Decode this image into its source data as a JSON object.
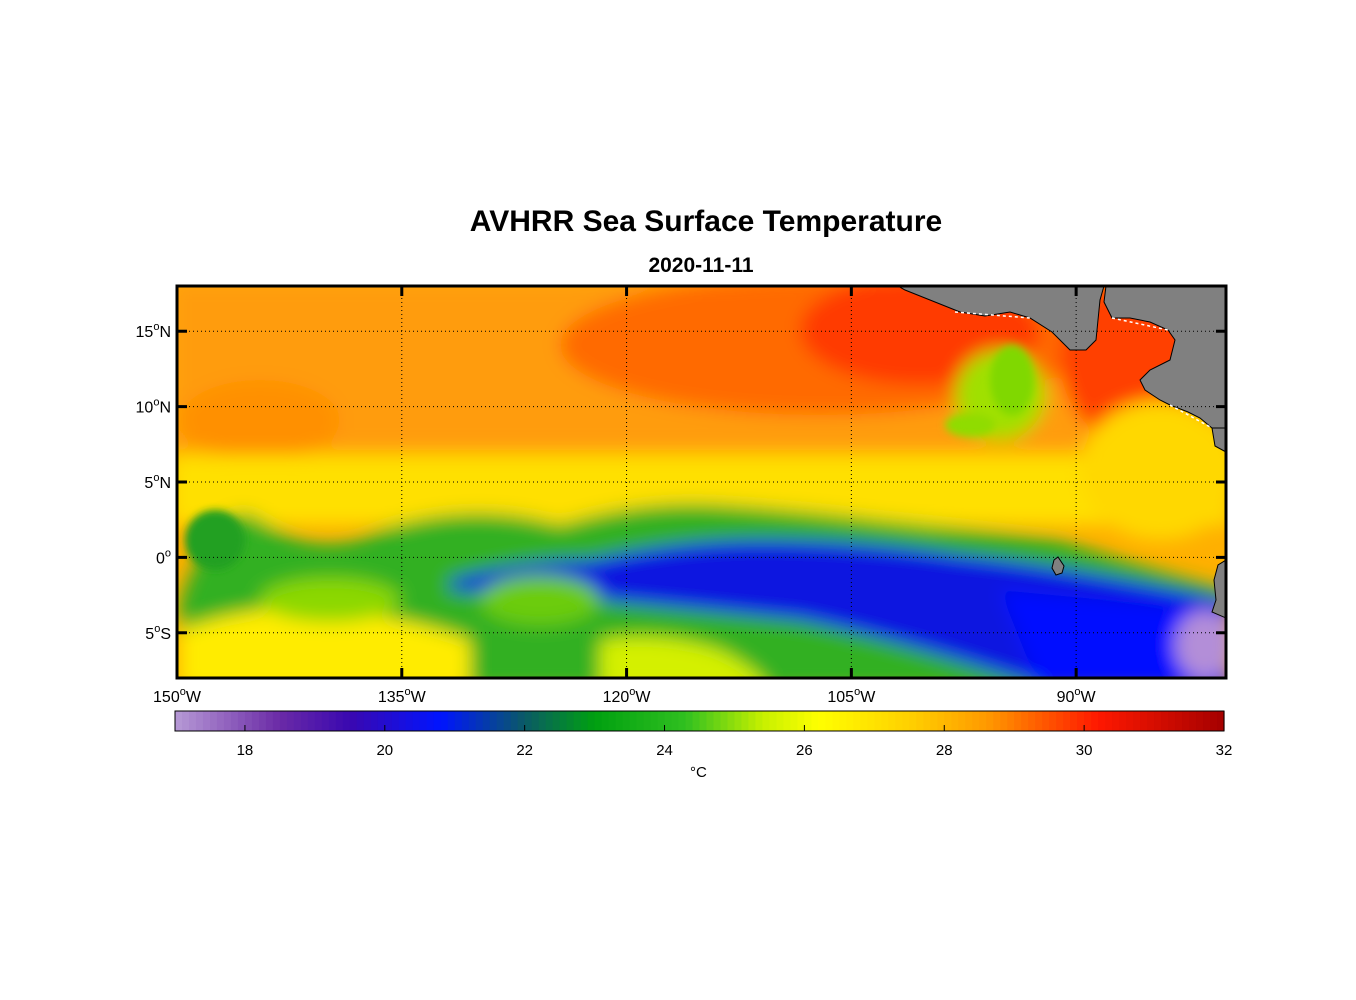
{
  "title": "AVHRR Sea Surface Temperature",
  "subtitle": "2020-11-11",
  "map": {
    "lon_range": [
      -150,
      -80
    ],
    "lat_range": [
      -8,
      18
    ],
    "lon_ticks": [
      {
        "value": -150,
        "num": "150",
        "sup": "o",
        "hemi": "W"
      },
      {
        "value": -135,
        "num": "135",
        "sup": "o",
        "hemi": "W"
      },
      {
        "value": -120,
        "num": "120",
        "sup": "o",
        "hemi": "W"
      },
      {
        "value": -105,
        "num": "105",
        "sup": "o",
        "hemi": "W"
      },
      {
        "value": -90,
        "num": "90",
        "sup": "o",
        "hemi": "W"
      }
    ],
    "lat_ticks": [
      {
        "value": 15,
        "num": "15",
        "sup": "o",
        "hemi": "N"
      },
      {
        "value": 10,
        "num": "10",
        "sup": "o",
        "hemi": "N"
      },
      {
        "value": 5,
        "num": "5",
        "sup": "o",
        "hemi": "N"
      },
      {
        "value": 0,
        "num": "0",
        "sup": "o",
        "hemi": ""
      },
      {
        "value": -5,
        "num": "5",
        "sup": "o",
        "hemi": "S"
      }
    ],
    "grid": true,
    "land_color": "#808080"
  },
  "colorbar": {
    "range": [
      17,
      32
    ],
    "ticks": [
      "18",
      "20",
      "22",
      "24",
      "26",
      "28",
      "30",
      "32"
    ],
    "unit": "°C",
    "colors": [
      {
        "v": 17,
        "c": "#b79ad6"
      },
      {
        "v": 18.5,
        "c": "#6a2aa6"
      },
      {
        "v": 19.5,
        "c": "#3a08b0"
      },
      {
        "v": 20.8,
        "c": "#0014ff"
      },
      {
        "v": 22.0,
        "c": "#0a5a66"
      },
      {
        "v": 23.0,
        "c": "#00a010"
      },
      {
        "v": 24.3,
        "c": "#30c020"
      },
      {
        "v": 25.4,
        "c": "#c6f000"
      },
      {
        "v": 26.2,
        "c": "#ffff00"
      },
      {
        "v": 27.5,
        "c": "#ffd000"
      },
      {
        "v": 28.6,
        "c": "#ff9a00"
      },
      {
        "v": 30.2,
        "c": "#ff1800"
      },
      {
        "v": 32,
        "c": "#a40000"
      }
    ]
  }
}
